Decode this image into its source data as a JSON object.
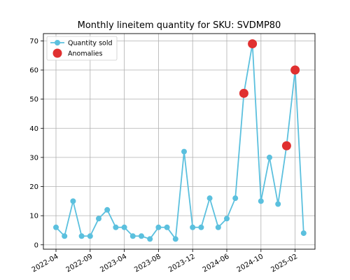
{
  "chart_data": {
    "type": "line",
    "title": "Monthly lineitem quantity for SKU: SVDMP80",
    "xlabel": "",
    "ylabel": "",
    "ylim": [
      -1.5,
      72.5
    ],
    "yticks": [
      0,
      10,
      20,
      30,
      40,
      50,
      60,
      70
    ],
    "xticks": [
      "2022-04",
      "2022-09",
      "2023-04",
      "2023-08",
      "2023-12",
      "2024-06",
      "2024-10",
      "2025-02"
    ],
    "grid": true,
    "legend_position": "top-left",
    "series": [
      {
        "name": "Quantity sold",
        "color": "#5bc0de",
        "values": [
          6,
          3,
          15,
          3,
          3,
          9,
          12,
          6,
          6,
          3,
          3,
          2,
          6,
          6,
          2,
          32,
          6,
          6,
          16,
          6,
          9,
          16,
          52,
          69,
          15,
          30,
          14,
          34,
          60,
          4
        ]
      },
      {
        "name": "Anomalies",
        "color": "#e03030",
        "points": [
          {
            "index": 22,
            "value": 52
          },
          {
            "index": 23,
            "value": 69
          },
          {
            "index": 27,
            "value": 34
          },
          {
            "index": 28,
            "value": 60
          }
        ]
      }
    ]
  }
}
